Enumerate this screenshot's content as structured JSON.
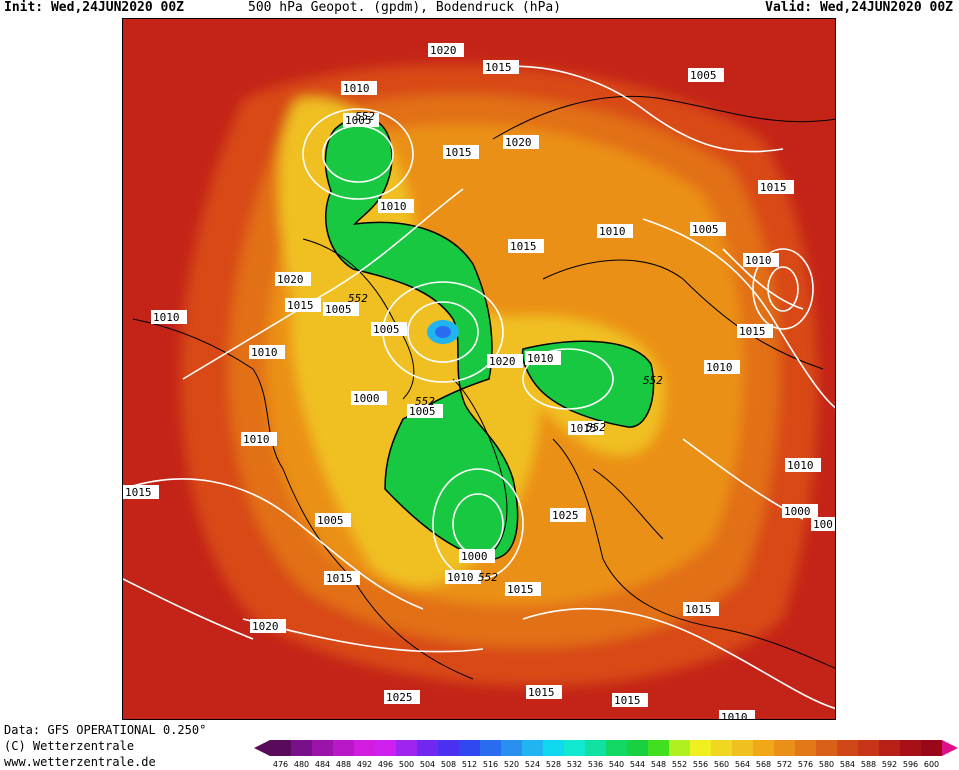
{
  "header": {
    "init": "Init: Wed,24JUN2020 00Z",
    "title": "500 hPa Geopot. (gpdm), Bodendruck (hPa)",
    "valid": "Valid: Wed,24JUN2020 00Z"
  },
  "footer": {
    "data_line": "Data: GFS OPERATIONAL 0.250°",
    "copyright": "(C) Wetterzentrale",
    "website": "www.wetterzentrale.de"
  },
  "legend": {
    "values": [
      "476",
      "480",
      "484",
      "488",
      "492",
      "496",
      "500",
      "504",
      "508",
      "512",
      "516",
      "520",
      "524",
      "528",
      "532",
      "536",
      "540",
      "544",
      "548",
      "552",
      "556",
      "560",
      "564",
      "568",
      "572",
      "576",
      "580",
      "584",
      "588",
      "592",
      "596",
      "600"
    ],
    "colors": [
      "#5a0a5a",
      "#7a0f8a",
      "#9a14aa",
      "#b818c8",
      "#d21ce0",
      "#d020f0",
      "#a024f0",
      "#7028f0",
      "#4a30f0",
      "#3048f0",
      "#2a6cf0",
      "#2a90f0",
      "#20b4f0",
      "#10d8f0",
      "#10e8d0",
      "#10e0a0",
      "#14d864",
      "#18d040",
      "#40e020",
      "#b0f020",
      "#f0f020",
      "#f0d820",
      "#f0c020",
      "#f0a818",
      "#e89018",
      "#e07818",
      "#d86018",
      "#d04818",
      "#c83418",
      "#b82018",
      "#a81018",
      "#980818"
    ]
  },
  "map": {
    "height_labels": [
      "552",
      "552",
      "552",
      "552",
      "552",
      "552"
    ],
    "pressure_labels": [
      "1020",
      "1015",
      "1005",
      "1010",
      "1005",
      "1015",
      "1020",
      "1015",
      "1015",
      "1010",
      "1015",
      "1005",
      "1010",
      "1020",
      "1015",
      "1005",
      "1010",
      "1010",
      "1005",
      "1015",
      "1020",
      "1010",
      "1010",
      "1015",
      "1010",
      "1000",
      "1005",
      "1010",
      "1025",
      "1000",
      "100",
      "1015",
      "1010",
      "1005",
      "1015",
      "1000",
      "1010",
      "1020",
      "1025",
      "1015",
      "1015",
      "1015",
      "1010"
    ]
  }
}
